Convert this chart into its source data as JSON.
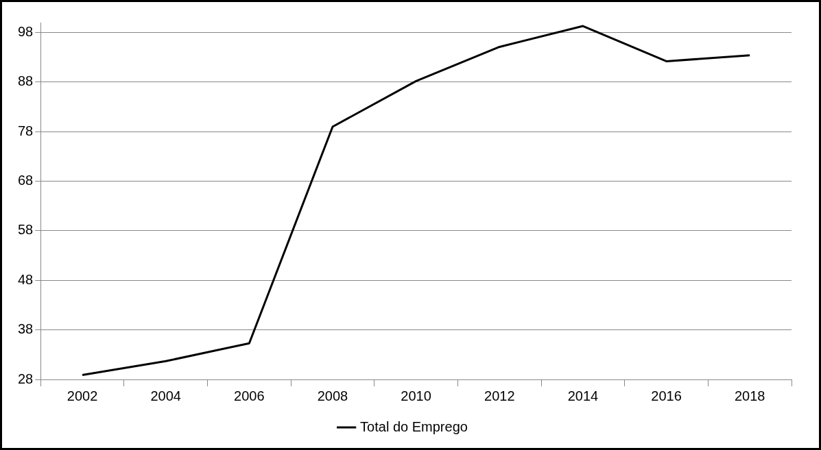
{
  "chart_data": {
    "type": "line",
    "categories": [
      "2002",
      "2004",
      "2006",
      "2008",
      "2010",
      "2012",
      "2014",
      "2016",
      "2018"
    ],
    "series": [
      {
        "name": "Total do Emprego",
        "color": "#000000",
        "values": [
          28.9,
          31.7,
          35.3,
          79.0,
          88.2,
          95.1,
          99.3,
          92.2,
          93.4
        ]
      }
    ],
    "ylim": [
      28,
      100
    ],
    "yticks": [
      28,
      38,
      48,
      58,
      68,
      78,
      88,
      98
    ],
    "grid": "y",
    "legend": "bottom",
    "marker": "none",
    "line_style": "solid"
  }
}
